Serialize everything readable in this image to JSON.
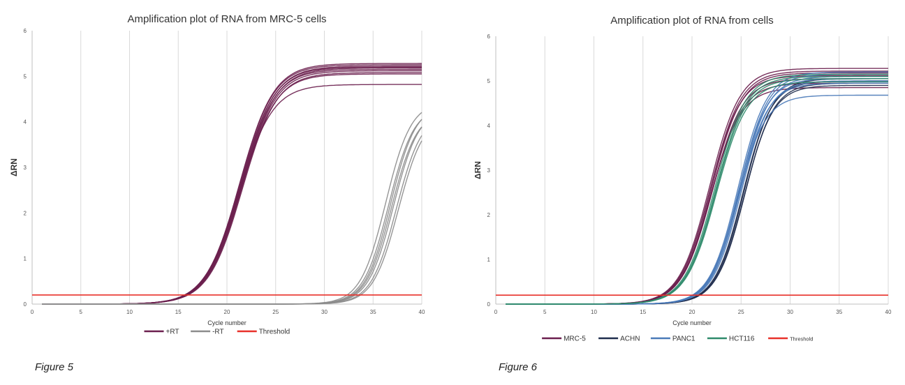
{
  "figures": [
    {
      "caption": "Figure 5",
      "chart_data": {
        "type": "line",
        "title": "Amplification plot of RNA from MRC-5 cells",
        "xlabel": "Cycle number",
        "ylabel": "ΔRN",
        "xlim": [
          0,
          40
        ],
        "ylim": [
          0,
          6
        ],
        "x_ticks": [
          "0",
          "5",
          "10",
          "15",
          "20",
          "25",
          "30",
          "35",
          "40"
        ],
        "y_ticks": [
          "0",
          "1",
          "2",
          "3",
          "4",
          "5",
          "6"
        ],
        "grid": "vertical",
        "legend_position": "bottom",
        "threshold": 0.2,
        "series": [
          {
            "name": "+RT",
            "color": "#6b1f4e",
            "x_start": 1,
            "curves": [
              {
                "plateau": 5.28,
                "midpoint": 21.3,
                "slope": 1.75
              },
              {
                "plateau": 5.25,
                "midpoint": 21.3,
                "slope": 1.75
              },
              {
                "plateau": 5.22,
                "midpoint": 21.4,
                "slope": 1.75
              },
              {
                "plateau": 5.2,
                "midpoint": 21.35,
                "slope": 1.75
              },
              {
                "plateau": 5.18,
                "midpoint": 21.5,
                "slope": 1.75
              },
              {
                "plateau": 5.15,
                "midpoint": 21.4,
                "slope": 1.75
              },
              {
                "plateau": 5.12,
                "midpoint": 21.5,
                "slope": 1.75
              },
              {
                "plateau": 5.08,
                "midpoint": 21.6,
                "slope": 1.75
              },
              {
                "plateau": 5.05,
                "midpoint": 21.5,
                "slope": 1.75
              },
              {
                "plateau": 4.82,
                "midpoint": 21.2,
                "slope": 1.75
              }
            ]
          },
          {
            "name": "-RT",
            "color": "#8c8c8c",
            "x_start": 1,
            "curves": [
              {
                "plateau": 4.45,
                "midpoint": 36.3,
                "slope": 1.3
              },
              {
                "plateau": 4.35,
                "midpoint": 36.6,
                "slope": 1.3
              },
              {
                "plateau": 4.4,
                "midpoint": 36.8,
                "slope": 1.3
              },
              {
                "plateau": 4.25,
                "midpoint": 36.9,
                "slope": 1.3
              },
              {
                "plateau": 4.3,
                "midpoint": 37.1,
                "slope": 1.3
              },
              {
                "plateau": 4.2,
                "midpoint": 37.4,
                "slope": 1.3
              },
              {
                "plateau": 4.15,
                "midpoint": 37.6,
                "slope": 1.3
              }
            ]
          },
          {
            "name": "Threshold",
            "color": "#e8312a",
            "threshold_line": true
          }
        ]
      }
    },
    {
      "caption": "Figure 6",
      "chart_data": {
        "type": "line",
        "title": "Amplification plot of RNA from cells",
        "xlabel": "Cycle number",
        "ylabel": "ΔRN",
        "xlim": [
          0,
          40
        ],
        "ylim": [
          0,
          6
        ],
        "x_ticks": [
          "0",
          "5",
          "10",
          "15",
          "20",
          "25",
          "30",
          "35",
          "40"
        ],
        "y_ticks": [
          "0",
          "1",
          "2",
          "3",
          "4",
          "5",
          "6"
        ],
        "grid": "vertical",
        "legend_position": "bottom",
        "threshold": 0.2,
        "series": [
          {
            "name": "MRC-5",
            "color": "#6b1f4e",
            "x_start": 1,
            "curves": [
              {
                "plateau": 5.28,
                "midpoint": 21.8,
                "slope": 1.55
              },
              {
                "plateau": 5.22,
                "midpoint": 21.9,
                "slope": 1.55
              },
              {
                "plateau": 5.18,
                "midpoint": 22.0,
                "slope": 1.55
              },
              {
                "plateau": 5.12,
                "midpoint": 21.85,
                "slope": 1.55
              },
              {
                "plateau": 5.05,
                "midpoint": 22.05,
                "slope": 1.55
              },
              {
                "plateau": 4.95,
                "midpoint": 22.0,
                "slope": 1.55
              },
              {
                "plateau": 4.85,
                "midpoint": 21.9,
                "slope": 1.55
              }
            ]
          },
          {
            "name": "ACHN",
            "color": "#1f2d4d",
            "x_start": 1,
            "curves": [
              {
                "plateau": 5.05,
                "midpoint": 25.3,
                "slope": 1.45
              },
              {
                "plateau": 4.95,
                "midpoint": 25.4,
                "slope": 1.45
              },
              {
                "plateau": 5.0,
                "midpoint": 25.2,
                "slope": 1.45
              },
              {
                "plateau": 4.9,
                "midpoint": 25.35,
                "slope": 1.45
              }
            ]
          },
          {
            "name": "PANC1",
            "color": "#4a7ab8",
            "x_start": 1,
            "curves": [
              {
                "plateau": 5.2,
                "midpoint": 24.7,
                "slope": 1.45
              },
              {
                "plateau": 5.15,
                "midpoint": 24.8,
                "slope": 1.45
              },
              {
                "plateau": 5.1,
                "midpoint": 24.9,
                "slope": 1.45
              },
              {
                "plateau": 5.05,
                "midpoint": 24.75,
                "slope": 1.45
              },
              {
                "plateau": 5.0,
                "midpoint": 25.0,
                "slope": 1.45
              },
              {
                "plateau": 4.95,
                "midpoint": 24.85,
                "slope": 1.45
              },
              {
                "plateau": 4.68,
                "midpoint": 24.6,
                "slope": 1.45
              }
            ]
          },
          {
            "name": "HCT116",
            "color": "#2e8a6a",
            "x_start": 1,
            "curves": [
              {
                "plateau": 5.15,
                "midpoint": 22.3,
                "slope": 1.55
              },
              {
                "plateau": 5.05,
                "midpoint": 22.45,
                "slope": 1.55
              },
              {
                "plateau": 4.98,
                "midpoint": 22.5,
                "slope": 1.55
              },
              {
                "plateau": 5.1,
                "midpoint": 22.4,
                "slope": 1.55
              }
            ]
          },
          {
            "name": "Threshold",
            "color": "#e8312a",
            "threshold_line": true
          }
        ]
      }
    }
  ]
}
